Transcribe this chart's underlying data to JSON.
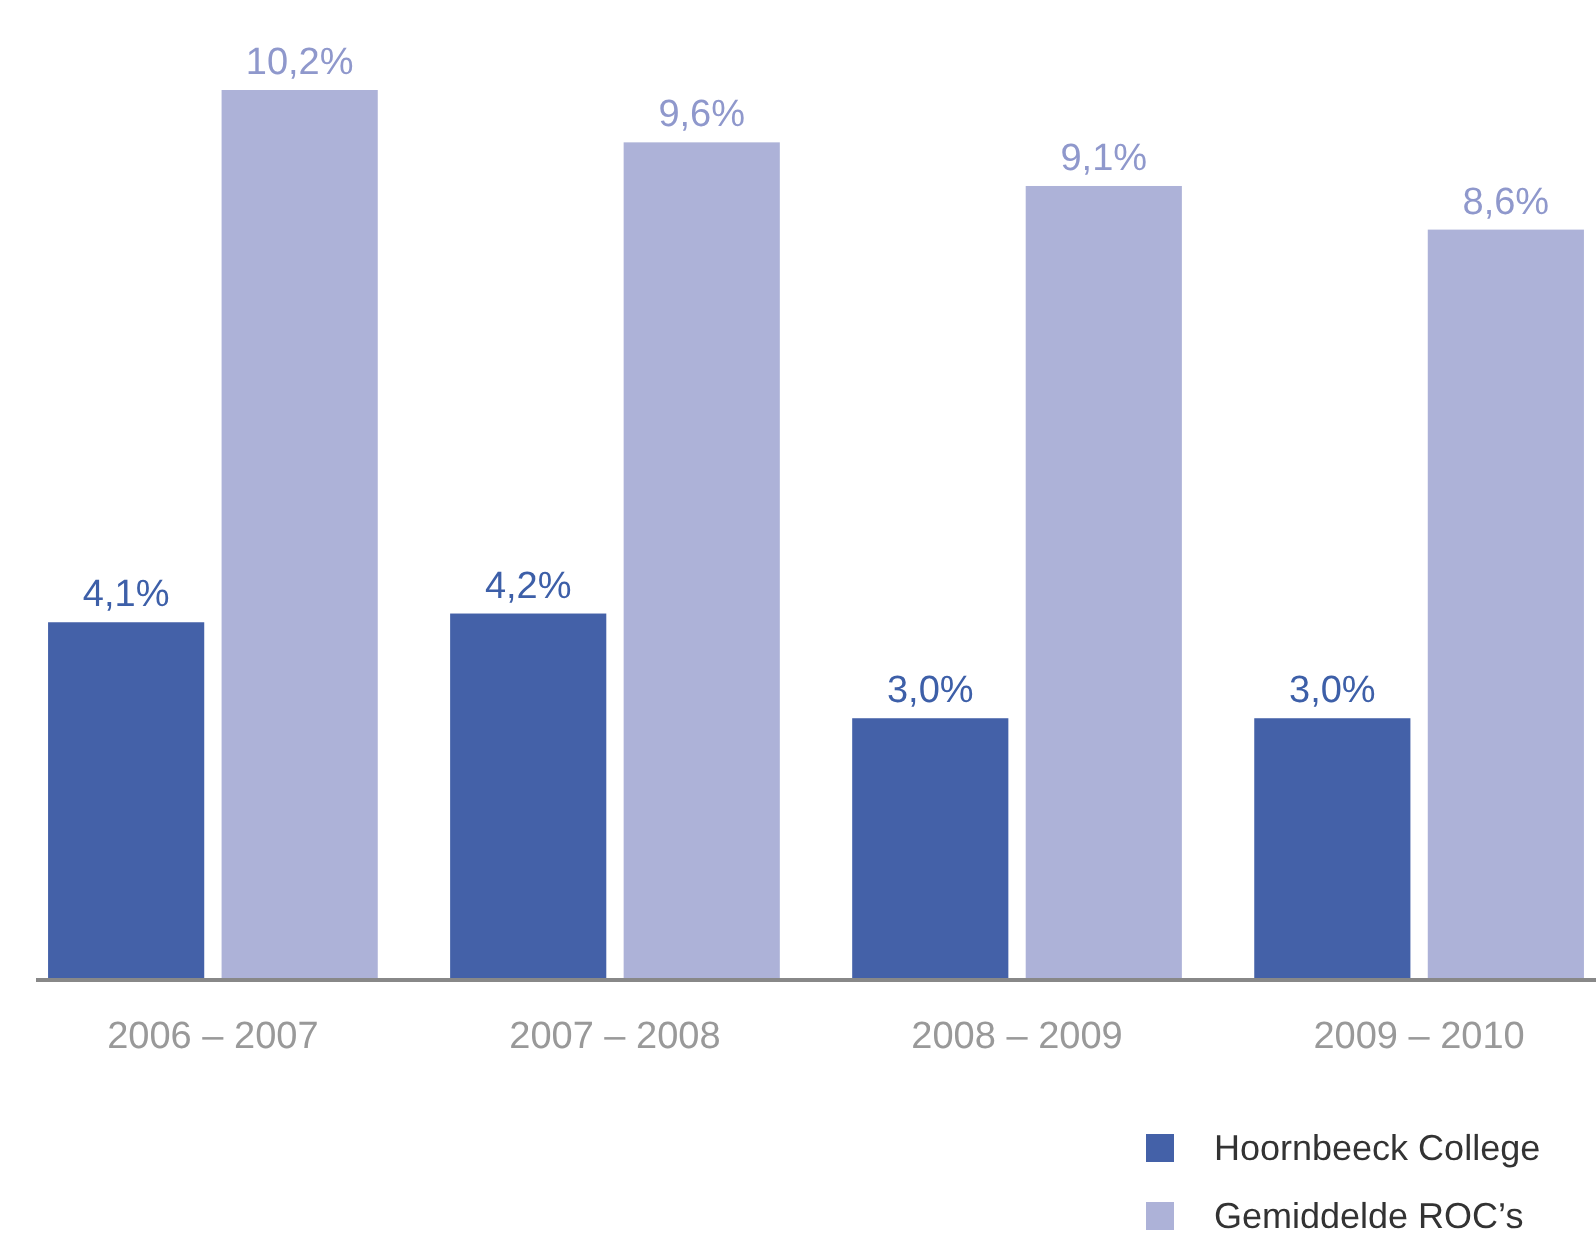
{
  "chart_data": {
    "type": "bar",
    "categories": [
      "2006 – 2007",
      "2007 – 2008",
      "2008 – 2009",
      "2009 – 2010"
    ],
    "series": [
      {
        "name": "Hoornbeeck College",
        "color": "#4461a8",
        "values": [
          4.1,
          4.2,
          3.0,
          3.0
        ],
        "value_labels": [
          "4,1%",
          "4,2%",
          "3,0%",
          "3,0%"
        ]
      },
      {
        "name": "Gemiddelde ROC’s",
        "color": "#adb2d8",
        "values": [
          10.2,
          9.6,
          9.1,
          8.6
        ],
        "value_labels": [
          "10,2%",
          "9,6%",
          "9,1%",
          "8,6%"
        ]
      }
    ],
    "legend": "bottom right",
    "grid": false
  }
}
